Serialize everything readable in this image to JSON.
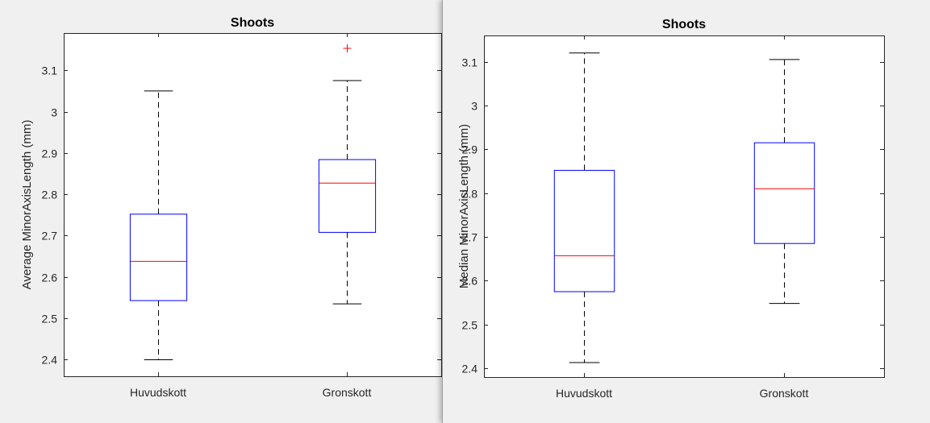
{
  "windows": [
    {
      "id": "left"
    },
    {
      "id": "right"
    }
  ],
  "chart_data": [
    {
      "type": "box",
      "title": "Shoots",
      "xlabel": "",
      "ylabel": "Average MinorAxisLength (mm)",
      "ylim": [
        2.36,
        3.19
      ],
      "yticks": [
        2.4,
        2.5,
        2.6,
        2.7,
        2.8,
        2.9,
        3.0,
        3.1
      ],
      "ytick_labels": [
        "2.4",
        "2.5",
        "2.6",
        "2.7",
        "2.8",
        "2.9",
        "3",
        "3.1"
      ],
      "categories": [
        "Huvudskott",
        "Gronskott"
      ],
      "boxes": [
        {
          "category": "Huvudskott",
          "whisker_low": 2.4,
          "q1": 2.543,
          "median": 2.638,
          "q3": 2.752,
          "whisker_high": 3.05,
          "outliers": []
        },
        {
          "category": "Gronskott",
          "whisker_low": 2.535,
          "q1": 2.708,
          "median": 2.827,
          "q3": 2.884,
          "whisker_high": 3.075,
          "outliers": [
            3.153
          ]
        }
      ],
      "colors": {
        "box": "#0000ff",
        "median": "#ff0000",
        "whisker": "#000000",
        "outlier": "#ff0000"
      },
      "grid": false
    },
    {
      "type": "box",
      "title": "Shoots",
      "xlabel": "",
      "ylabel": "Median MinorAxisLength (mm)",
      "ylim": [
        2.38,
        3.16
      ],
      "yticks": [
        2.4,
        2.5,
        2.6,
        2.7,
        2.8,
        2.9,
        3.0,
        3.1
      ],
      "ytick_labels": [
        "2.4",
        "2.5",
        "2.6",
        "2.7",
        "2.8",
        "2.9",
        "3",
        "3.1"
      ],
      "categories": [
        "Huvudskott",
        "Gronskott"
      ],
      "boxes": [
        {
          "category": "Huvudskott",
          "whisker_low": 2.413,
          "q1": 2.575,
          "median": 2.657,
          "q3": 2.852,
          "whisker_high": 3.12,
          "outliers": []
        },
        {
          "category": "Gronskott",
          "whisker_low": 2.548,
          "q1": 2.685,
          "median": 2.81,
          "q3": 2.915,
          "whisker_high": 3.105,
          "outliers": []
        }
      ],
      "colors": {
        "box": "#0000ff",
        "median": "#ff0000",
        "whisker": "#000000",
        "outlier": "#ff0000"
      },
      "grid": false
    }
  ]
}
